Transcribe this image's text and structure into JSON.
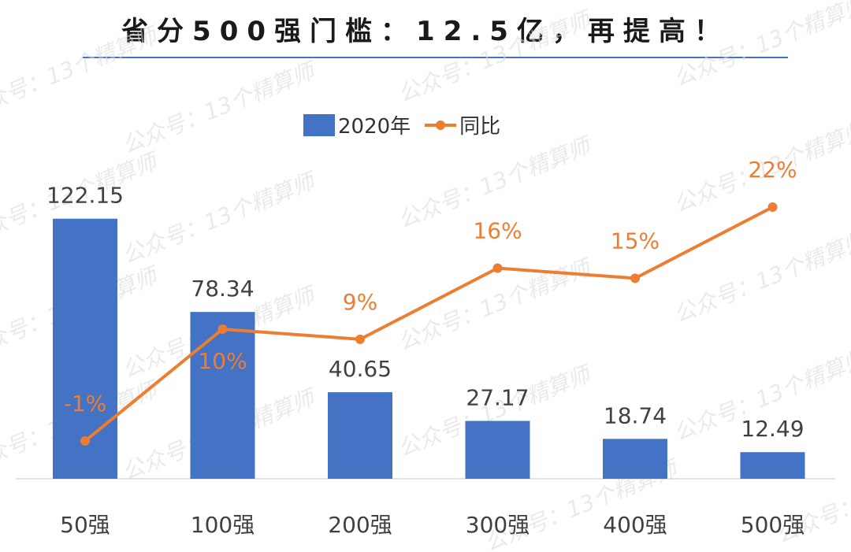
{
  "title": "省分500强门槛：12.5亿，再提高！",
  "watermark_text": "公众号：13个精算师",
  "colors": {
    "bar": "#4472c4",
    "line": "#ed7d31",
    "title_rule": "#4472c4",
    "text": "#404040"
  },
  "legend": {
    "bar_label": "2020年",
    "line_label": "同比"
  },
  "chart_data": {
    "type": "bar",
    "categories": [
      "50强",
      "100强",
      "200强",
      "300强",
      "400强",
      "500强"
    ],
    "series": [
      {
        "name": "2020年",
        "type": "bar",
        "values": [
          122.15,
          78.34,
          40.65,
          27.17,
          18.74,
          12.49
        ],
        "labels": [
          "122.15",
          "78.34",
          "40.65",
          "27.17",
          "18.74",
          "12.49"
        ]
      },
      {
        "name": "同比",
        "type": "line",
        "values": [
          -0.01,
          0.1,
          0.09,
          0.16,
          0.15,
          0.22
        ],
        "labels": [
          "-1%",
          "10%",
          "9%",
          "16%",
          "15%",
          "22%"
        ]
      }
    ],
    "ylim_bar": [
      0,
      125
    ],
    "ylim_line": [
      -0.04,
      0.265
    ]
  }
}
